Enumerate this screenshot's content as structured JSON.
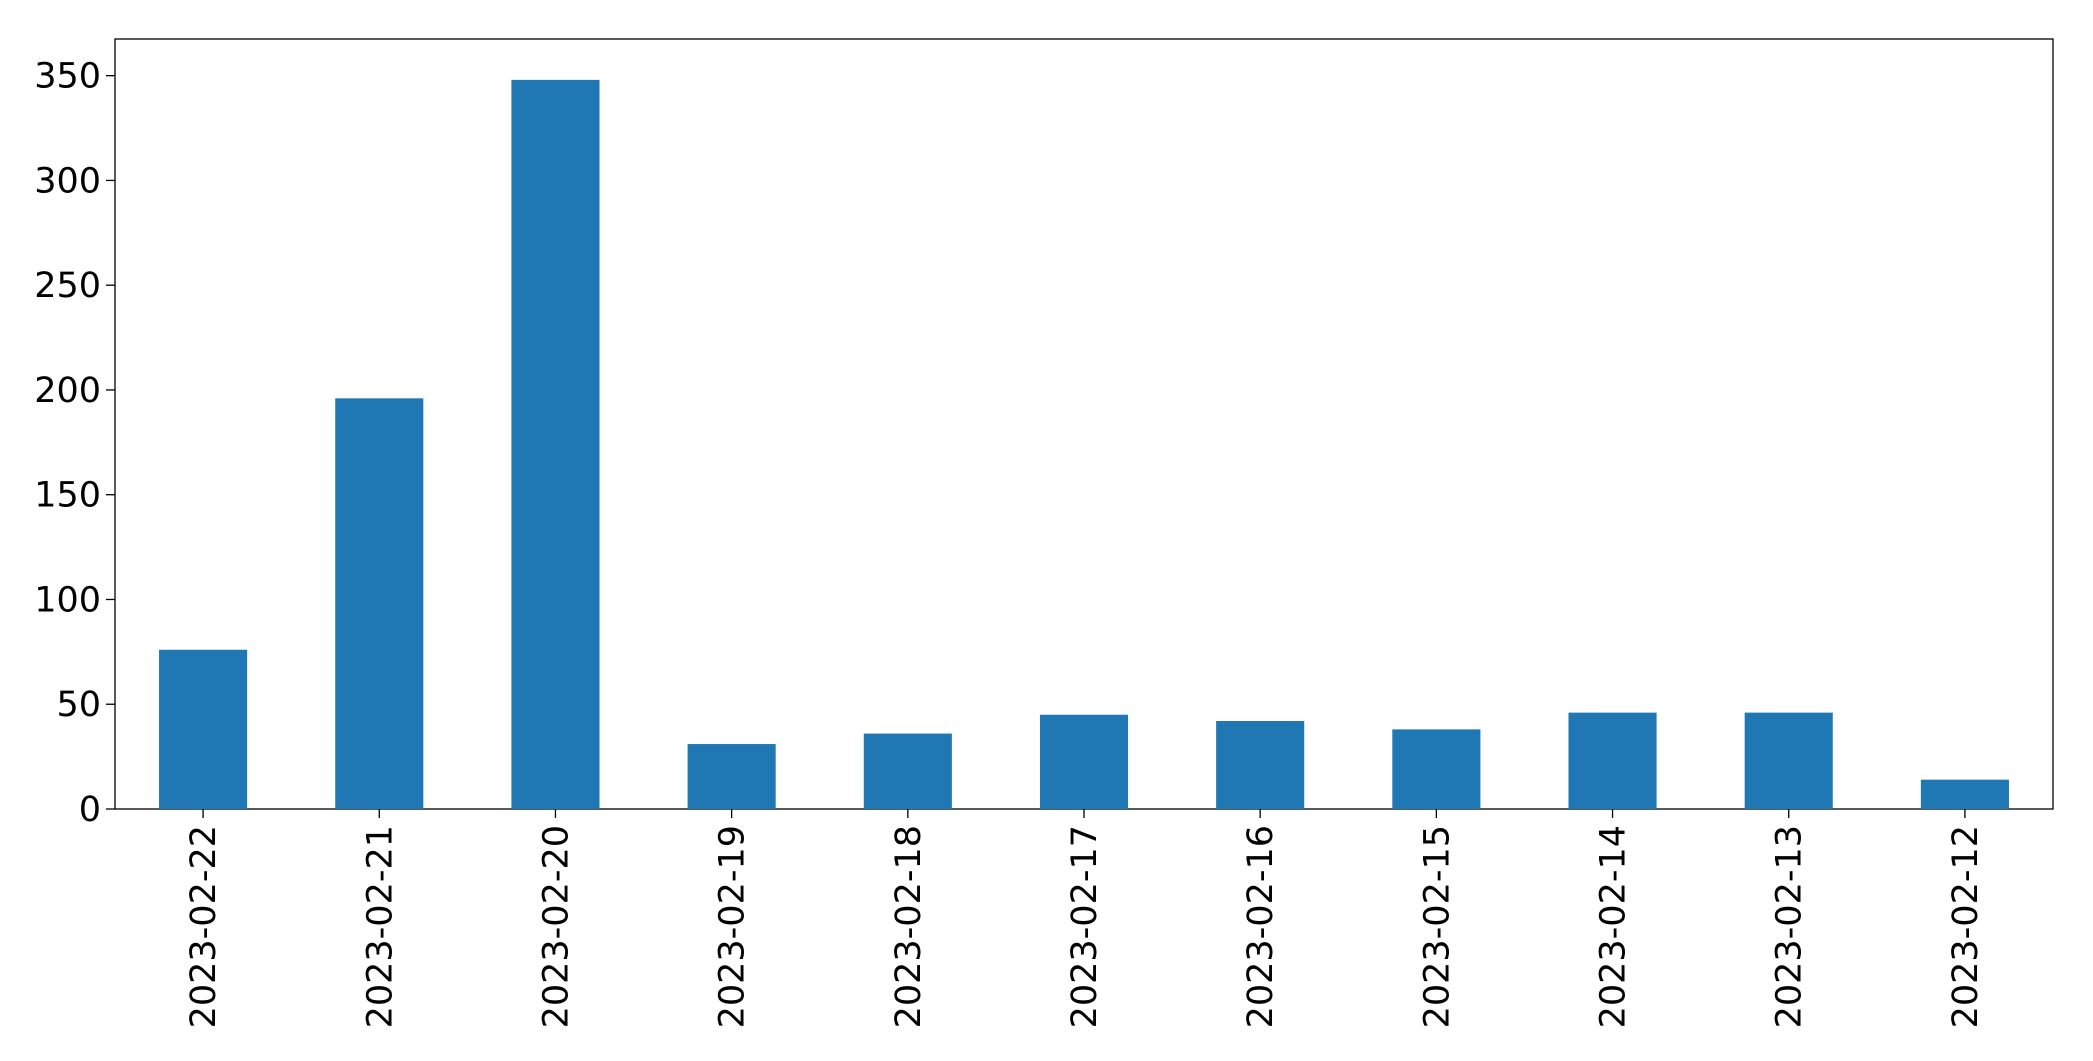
{
  "chart_data": {
    "type": "bar",
    "categories": [
      "2023-02-22",
      "2023-02-21",
      "2023-02-20",
      "2023-02-19",
      "2023-02-18",
      "2023-02-17",
      "2023-02-16",
      "2023-02-15",
      "2023-02-14",
      "2023-02-13",
      "2023-02-12"
    ],
    "values": [
      76,
      196,
      348,
      31,
      36,
      45,
      42,
      38,
      46,
      46,
      14
    ],
    "color": "#1f77b4",
    "ylim": [
      0,
      367.5
    ],
    "yticks": [
      0,
      50,
      100,
      150,
      200,
      250,
      300,
      350
    ],
    "grid": false
  }
}
